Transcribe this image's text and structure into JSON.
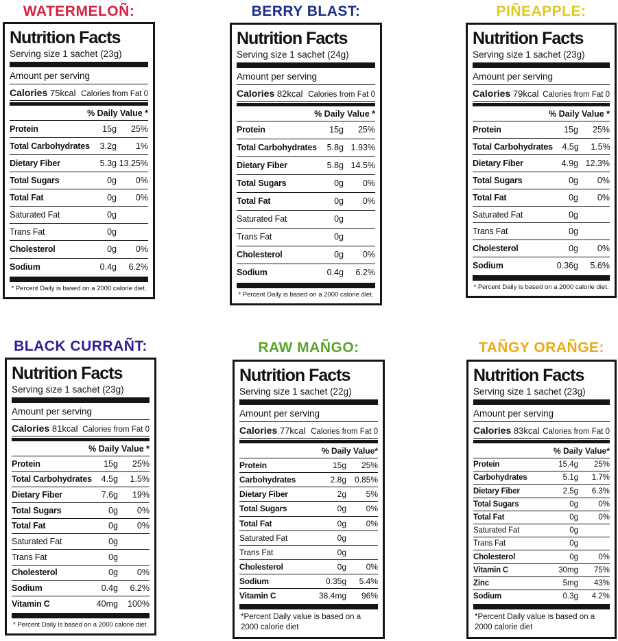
{
  "page": {
    "background": "#ffffff"
  },
  "shared": {
    "heading": "Nutrition Facts",
    "amount_per_serving": "Amount per serving",
    "calories_label": "Calories",
    "calories_from_fat": "Calories from Fat 0"
  },
  "labels": [
    {
      "flavor": "watermelon",
      "title": "WATERMELOÑ:",
      "title_color": "#d22341",
      "serving": "Serving size 1 sachet (23g)",
      "calories_value": "75kcal",
      "dv_header": "% Daily Value *",
      "rows": [
        {
          "name": "Protein",
          "amount": "15g",
          "percent": "25%",
          "bold": true
        },
        {
          "name": "Total Carbohydrates",
          "amount": "3.2g",
          "percent": "1%",
          "bold": true
        },
        {
          "name": "Dietary Fiber",
          "amount": "5.3g",
          "percent": "13.25%",
          "bold": true
        },
        {
          "name": "Total Sugars",
          "amount": "0g",
          "percent": "0%",
          "bold": true
        },
        {
          "name": "Total Fat",
          "amount": "0g",
          "percent": "0%",
          "bold": true
        },
        {
          "name": "Saturated Fat",
          "amount": "0g",
          "percent": "",
          "bold": false
        },
        {
          "name": "Trans Fat",
          "amount": "0g",
          "percent": "",
          "bold": false
        },
        {
          "name": "Cholesterol",
          "amount": "0g",
          "percent": "0%",
          "bold": true
        },
        {
          "name": "Sodium",
          "amount": "0.4g",
          "percent": "6.2%",
          "bold": true
        }
      ],
      "footnote": "* Percent Daily is based on a 2000 calorie diet."
    },
    {
      "flavor": "berry-blast",
      "title": "BERRY BLAST:",
      "title_color": "#1c2f87",
      "serving": "Serving size 1 sachet (24g)",
      "calories_value": "82kcal",
      "dv_header": "% Daily Value *",
      "rows": [
        {
          "name": "Protein",
          "amount": "15g",
          "percent": "25%",
          "bold": true
        },
        {
          "name": "Total Carbohydrates",
          "amount": "5.8g",
          "percent": "1.93%",
          "bold": true
        },
        {
          "name": "Dietary Fiber",
          "amount": "5.8g",
          "percent": "14.5%",
          "bold": true
        },
        {
          "name": "Total Sugars",
          "amount": "0g",
          "percent": "0%",
          "bold": true
        },
        {
          "name": "Total Fat",
          "amount": "0g",
          "percent": "0%",
          "bold": true
        },
        {
          "name": "Saturated Fat",
          "amount": "0g",
          "percent": "",
          "bold": false
        },
        {
          "name": "Trans Fat",
          "amount": "0g",
          "percent": "",
          "bold": false
        },
        {
          "name": "Cholesterol",
          "amount": "0g",
          "percent": "0%",
          "bold": true
        },
        {
          "name": "Sodium",
          "amount": "0.4g",
          "percent": "6.2%",
          "bold": true
        }
      ],
      "footnote": "* Percent Daily is based on a 2000 calorie diet."
    },
    {
      "flavor": "pineapple",
      "title": "PIÑEAPPLE:",
      "title_color": "#e0c823",
      "serving": "Serving size 1 sachet (23g)",
      "calories_value": "79kcal",
      "dv_header": "% Daily Value *",
      "rows": [
        {
          "name": "Protein",
          "amount": "15g",
          "percent": "25%",
          "bold": true
        },
        {
          "name": "Total Carbohydrates",
          "amount": "4.5g",
          "percent": "1.5%",
          "bold": true
        },
        {
          "name": "Dietary Fiber",
          "amount": "4.9g",
          "percent": "12.3%",
          "bold": true
        },
        {
          "name": "Total Sugars",
          "amount": "0g",
          "percent": "0%",
          "bold": true
        },
        {
          "name": "Total Fat",
          "amount": "0g",
          "percent": "0%",
          "bold": true
        },
        {
          "name": "Saturated Fat",
          "amount": "0g",
          "percent": "",
          "bold": false
        },
        {
          "name": "Trans Fat",
          "amount": "0g",
          "percent": "",
          "bold": false
        },
        {
          "name": "Cholesterol",
          "amount": "0g",
          "percent": "0%",
          "bold": true
        },
        {
          "name": "Sodium",
          "amount": "0.36g",
          "percent": "5.6%",
          "bold": true
        }
      ],
      "footnote": "* Percent Daily is based on a 2000 calorie diet."
    },
    {
      "flavor": "black-currant",
      "title": "BLACK CURRAÑT:",
      "title_color": "#2f1d94",
      "serving": "Serving size 1 sachet (23g)",
      "calories_value": "81kcal",
      "dv_header": "% Daily Value *",
      "rows": [
        {
          "name": "Protein",
          "amount": "15g",
          "percent": "25%",
          "bold": true
        },
        {
          "name": "Total Carbohydrates",
          "amount": "4.5g",
          "percent": "1.5%",
          "bold": true
        },
        {
          "name": "Dietary Fiber",
          "amount": "7.6g",
          "percent": "19%",
          "bold": true
        },
        {
          "name": "Total Sugars",
          "amount": "0g",
          "percent": "0%",
          "bold": true
        },
        {
          "name": "Total Fat",
          "amount": "0g",
          "percent": "0%",
          "bold": true
        },
        {
          "name": "Saturated Fat",
          "amount": "0g",
          "percent": "",
          "bold": false
        },
        {
          "name": "Trans Fat",
          "amount": "0g",
          "percent": "",
          "bold": false
        },
        {
          "name": "Cholesterol",
          "amount": "0g",
          "percent": "0%",
          "bold": true
        },
        {
          "name": "Sodium",
          "amount": "0.4g",
          "percent": "6.2%",
          "bold": true
        },
        {
          "name": "Vitamin C",
          "amount": "40mg",
          "percent": "100%",
          "bold": true
        }
      ],
      "footnote": "* Percent Daily is based on a 2000 calorie diet."
    },
    {
      "flavor": "raw-mango",
      "title": "RAW MAÑGO:",
      "title_color": "#5aa42c",
      "serving": "Serving size 1 sachet (22g)",
      "calories_value": "77kcal",
      "dv_header": "% Daily Value*",
      "rows": [
        {
          "name": "Protein",
          "amount": "15g",
          "percent": "25%",
          "bold": true
        },
        {
          "name": "Carbohydrates",
          "amount": "2.8g",
          "percent": "0.85%",
          "bold": true
        },
        {
          "name": "Dietary Fiber",
          "amount": "2g",
          "percent": "5%",
          "bold": true
        },
        {
          "name": "Total Sugars",
          "amount": "0g",
          "percent": "0%",
          "bold": true
        },
        {
          "name": "Total Fat",
          "amount": "0g",
          "percent": "0%",
          "bold": true
        },
        {
          "name": "Saturated Fat",
          "amount": "0g",
          "percent": "",
          "bold": false
        },
        {
          "name": "Trans Fat",
          "amount": "0g",
          "percent": "",
          "bold": false
        },
        {
          "name": "Cholesterol",
          "amount": "0g",
          "percent": "0%",
          "bold": true
        },
        {
          "name": "Sodium",
          "amount": "0.35g",
          "percent": "5.4%",
          "bold": true
        },
        {
          "name": "Vitamin C",
          "amount": "38.4mg",
          "percent": "96%",
          "bold": true
        }
      ],
      "footnote": "*Percent Daily value is based on a 2000 calorie diet"
    },
    {
      "flavor": "tangy-orange",
      "title": "TAÑGY ORAÑGE:",
      "title_color": "#eda816",
      "serving": "Serving size 1 sachet (23g)",
      "calories_value": "83kcal",
      "dv_header": "% Daily Value*",
      "rows": [
        {
          "name": "Protein",
          "amount": "15.4g",
          "percent": "25%",
          "bold": true
        },
        {
          "name": "Carbohydrates",
          "amount": "5.1g",
          "percent": "1.7%",
          "bold": true
        },
        {
          "name": "Dietary Fiber",
          "amount": "2.5g",
          "percent": "6.3%",
          "bold": true
        },
        {
          "name": "Total Sugars",
          "amount": "0g",
          "percent": "0%",
          "bold": true
        },
        {
          "name": "Total Fat",
          "amount": "0g",
          "percent": "0%",
          "bold": true
        },
        {
          "name": "Saturated Fat",
          "amount": "0g",
          "percent": "",
          "bold": false
        },
        {
          "name": "Trans Fat",
          "amount": "0g",
          "percent": "",
          "bold": false
        },
        {
          "name": "Cholesterol",
          "amount": "0g",
          "percent": "0%",
          "bold": true
        },
        {
          "name": "Vitamin C",
          "amount": "30mg",
          "percent": "75%",
          "bold": true
        },
        {
          "name": "Zinc",
          "amount": "5mg",
          "percent": "43%",
          "bold": true
        },
        {
          "name": "Sodium",
          "amount": "0.3g",
          "percent": "4.2%",
          "bold": true
        }
      ],
      "footnote": "*Percent Daily value is based on a 2000 calorie diet"
    }
  ]
}
